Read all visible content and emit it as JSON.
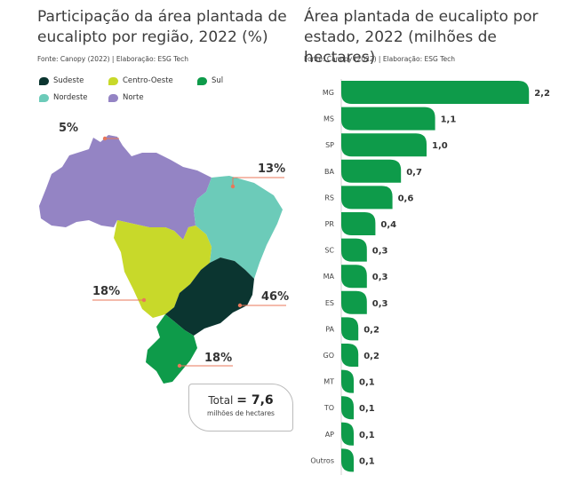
{
  "chart_data": [
    {
      "type": "map",
      "title": "Participação da área plantada de eucalipto por região, 2022 (%)",
      "source": "Fonte: Canopy (2022) | Elaboração: ESG Tech",
      "legend": [
        {
          "name": "Sudeste",
          "color": "#0b3530"
        },
        {
          "name": "Centro-Oeste",
          "color": "#c8d92a"
        },
        {
          "name": "Sul",
          "color": "#0e9b4a"
        },
        {
          "name": "Nordeste",
          "color": "#6ccbb9"
        },
        {
          "name": "Norte",
          "color": "#9484c4"
        }
      ],
      "regions": [
        {
          "name": "Norte",
          "value_label": "5%",
          "value": 5
        },
        {
          "name": "Nordeste",
          "value_label": "13%",
          "value": 13
        },
        {
          "name": "Centro-Oeste",
          "value_label": "18%",
          "value": 18
        },
        {
          "name": "Sudeste",
          "value_label": "46%",
          "value": 46
        },
        {
          "name": "Sul",
          "value_label": "18%",
          "value": 18
        }
      ],
      "total": {
        "prefix": "Total",
        "value": "= 7,6",
        "unit": "milhões de hectares"
      }
    },
    {
      "type": "bar",
      "orientation": "horizontal",
      "title": "Área plantada de eucalipto por estado, 2022 (milhões de hectares)",
      "source": "Fonte: Canopy (2022) | Elaboração: ESG Tech",
      "categories": [
        "MG",
        "MS",
        "SP",
        "BA",
        "RS",
        "PR",
        "SC",
        "MA",
        "ES",
        "PA",
        "GO",
        "MT",
        "TO",
        "AP",
        "Outros"
      ],
      "values": [
        2.2,
        1.1,
        1.0,
        0.7,
        0.6,
        0.4,
        0.3,
        0.3,
        0.3,
        0.2,
        0.2,
        0.1,
        0.1,
        0.1,
        0.1
      ],
      "labels": [
        "2,2",
        "1,1",
        "1,0",
        "0,7",
        "0,6",
        "0,4",
        "0,3",
        "0,3",
        "0,3",
        "0,2",
        "0,2",
        "0,1",
        "0,1",
        "0,1",
        "0,1"
      ],
      "bar_color": "#0e9b4a",
      "grid": false
    }
  ]
}
